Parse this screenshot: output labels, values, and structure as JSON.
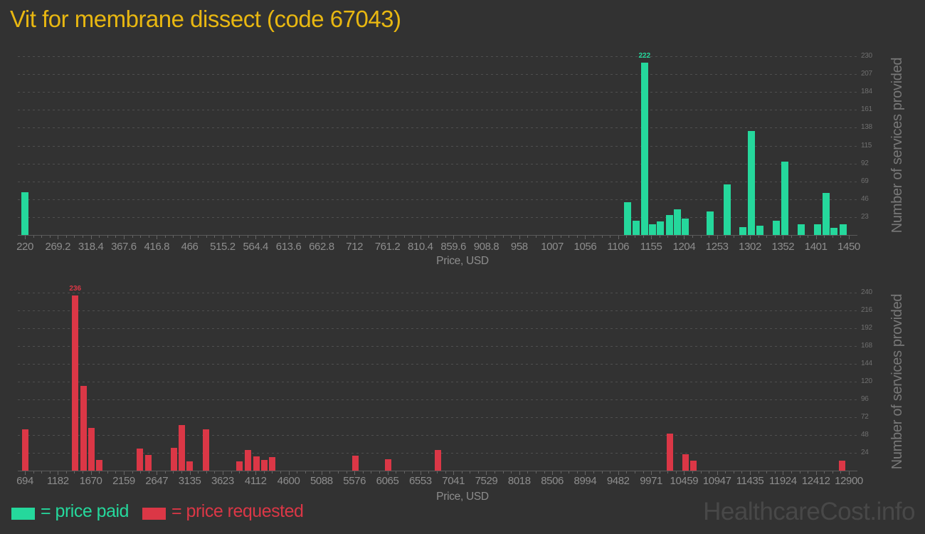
{
  "page": {
    "title": "Vit for membrane dissect (code 67043)",
    "watermark": "HealthcareCost.info"
  },
  "legend": {
    "paid_label": "= price paid",
    "requested_label": "= price requested"
  },
  "colors": {
    "background": "#323232",
    "title": "#e8b711",
    "paid": "#25d89c",
    "requested": "#db3746",
    "watermark": "#484848"
  },
  "chart_data": [
    {
      "type": "bar",
      "name": "price-paid-histogram",
      "series": "price paid",
      "color_key": "paid",
      "xlabel": "Price, USD",
      "ylabel": "Number of services provided",
      "x_range": [
        220,
        1450
      ],
      "x_ticks": [
        "220",
        "269.2",
        "318.4",
        "367.6",
        "416.8",
        "466",
        "515.2",
        "564.4",
        "613.6",
        "662.8",
        "712",
        "761.2",
        "810.4",
        "859.6",
        "908.8",
        "958",
        "1007",
        "1056",
        "1106",
        "1155",
        "1204",
        "1253",
        "1302",
        "1352",
        "1401",
        "1450"
      ],
      "y_ticks": [
        23,
        46,
        69,
        92,
        115,
        138,
        161,
        184,
        207,
        230
      ],
      "annotation": {
        "text": "222",
        "x": 1145,
        "y": 222
      },
      "bars": [
        {
          "x": 220,
          "y": 55
        },
        {
          "x": 1120,
          "y": 42
        },
        {
          "x": 1132,
          "y": 18
        },
        {
          "x": 1145,
          "y": 222
        },
        {
          "x": 1157,
          "y": 14
        },
        {
          "x": 1169,
          "y": 17
        },
        {
          "x": 1182,
          "y": 26
        },
        {
          "x": 1194,
          "y": 33
        },
        {
          "x": 1206,
          "y": 21
        },
        {
          "x": 1243,
          "y": 30
        },
        {
          "x": 1268,
          "y": 65
        },
        {
          "x": 1292,
          "y": 10
        },
        {
          "x": 1304,
          "y": 134
        },
        {
          "x": 1317,
          "y": 12
        },
        {
          "x": 1342,
          "y": 18
        },
        {
          "x": 1354,
          "y": 94
        },
        {
          "x": 1379,
          "y": 14
        },
        {
          "x": 1403,
          "y": 14
        },
        {
          "x": 1416,
          "y": 54
        },
        {
          "x": 1428,
          "y": 9
        },
        {
          "x": 1441,
          "y": 14
        }
      ]
    },
    {
      "type": "bar",
      "name": "price-requested-histogram",
      "series": "price requested",
      "color_key": "requested",
      "xlabel": "Price, USD",
      "ylabel": "Number of services provided",
      "x_range": [
        694,
        12900
      ],
      "x_ticks": [
        "694",
        "1182",
        "1670",
        "2159",
        "2647",
        "3135",
        "3623",
        "4112",
        "4600",
        "5088",
        "5576",
        "6065",
        "6553",
        "7041",
        "7529",
        "8018",
        "8506",
        "8994",
        "9482",
        "9971",
        "10459",
        "10947",
        "11435",
        "11924",
        "12412",
        "12900"
      ],
      "y_ticks": [
        24,
        48,
        72,
        96,
        120,
        144,
        168,
        192,
        216,
        240
      ],
      "annotation": {
        "text": "236",
        "x": 1440,
        "y": 236
      },
      "bars": [
        {
          "x": 700,
          "y": 56
        },
        {
          "x": 1440,
          "y": 236
        },
        {
          "x": 1559,
          "y": 114
        },
        {
          "x": 1677,
          "y": 58
        },
        {
          "x": 1800,
          "y": 14
        },
        {
          "x": 2400,
          "y": 30
        },
        {
          "x": 2528,
          "y": 21
        },
        {
          "x": 2897,
          "y": 31
        },
        {
          "x": 3018,
          "y": 61
        },
        {
          "x": 3139,
          "y": 12
        },
        {
          "x": 3377,
          "y": 56
        },
        {
          "x": 3877,
          "y": 12
        },
        {
          "x": 3998,
          "y": 28
        },
        {
          "x": 4120,
          "y": 19
        },
        {
          "x": 4236,
          "y": 14
        },
        {
          "x": 4362,
          "y": 18
        },
        {
          "x": 5590,
          "y": 20
        },
        {
          "x": 6075,
          "y": 15
        },
        {
          "x": 6813,
          "y": 28
        },
        {
          "x": 10244,
          "y": 50
        },
        {
          "x": 10476,
          "y": 22
        },
        {
          "x": 10597,
          "y": 13
        },
        {
          "x": 12795,
          "y": 13
        }
      ]
    }
  ]
}
